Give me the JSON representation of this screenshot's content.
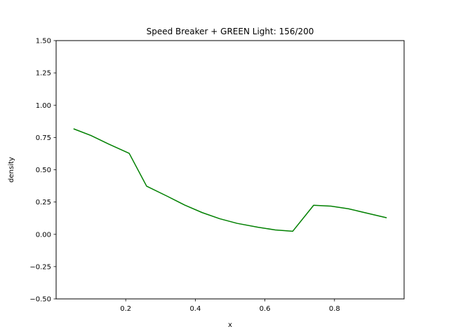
{
  "chart_data": {
    "type": "line",
    "title": "Speed Breaker + GREEN Light: 156/200",
    "xlabel": "x",
    "ylabel": "density",
    "xlim": [
      0.0,
      1.0
    ],
    "ylim": [
      -0.5,
      1.5
    ],
    "xticks": [
      "0.2",
      "0.4",
      "0.6",
      "0.8"
    ],
    "yticks": [
      "−0.50",
      "−0.25",
      "0.00",
      "0.25",
      "0.50",
      "0.75",
      "1.00",
      "1.25",
      "1.50"
    ],
    "grid": false,
    "series": [
      {
        "color": "#008000",
        "x": [
          0.05,
          0.1,
          0.15,
          0.21,
          0.26,
          0.32,
          0.37,
          0.42,
          0.47,
          0.52,
          0.58,
          0.63,
          0.68,
          0.74,
          0.79,
          0.84,
          0.89,
          0.95
        ],
        "y": [
          0.817,
          0.765,
          0.7,
          0.627,
          0.373,
          0.294,
          0.226,
          0.168,
          0.121,
          0.085,
          0.055,
          0.034,
          0.024,
          0.225,
          0.218,
          0.198,
          0.166,
          0.128
        ]
      }
    ]
  }
}
